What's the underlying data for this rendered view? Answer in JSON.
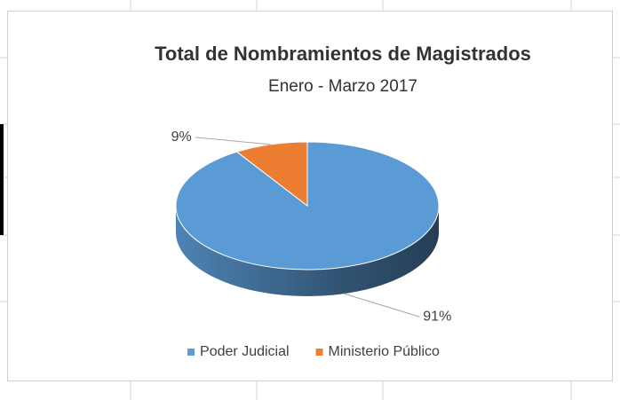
{
  "chart_data": {
    "type": "pie",
    "title": "Total de Nombramientos de Magistrados",
    "subtitle": "Enero - Marzo 2017",
    "categories": [
      "Poder Judicial",
      "Ministerio Público"
    ],
    "values": [
      91,
      9
    ],
    "value_labels": [
      "91%",
      "9%"
    ],
    "colors": [
      "#5b9bd5",
      "#ed7d31"
    ],
    "legend": "bottom",
    "three_d": true
  }
}
